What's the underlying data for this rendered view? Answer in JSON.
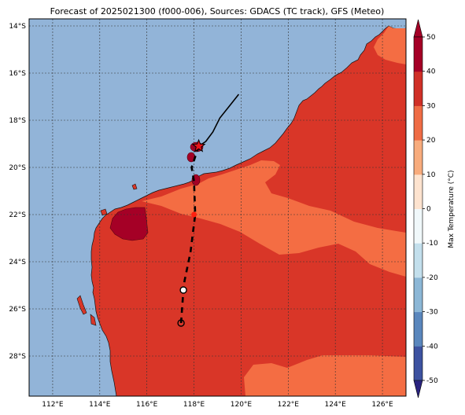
{
  "title": "Forecast of 2025021300 (f000-006), Sources: GDACS (TC track), GFS (Meteo)",
  "map": {
    "lon_range": [
      111,
      127
    ],
    "lat_range": [
      -29.7,
      -13.7
    ],
    "lon_ticks": [
      {
        "value": 112,
        "label": "112°E"
      },
      {
        "value": 114,
        "label": "114°E"
      },
      {
        "value": 116,
        "label": "116°E"
      },
      {
        "value": 118,
        "label": "118°E"
      },
      {
        "value": 120,
        "label": "120°E"
      },
      {
        "value": 122,
        "label": "122°E"
      },
      {
        "value": 124,
        "label": "124°E"
      },
      {
        "value": 126,
        "label": "126°E"
      }
    ],
    "lat_ticks": [
      {
        "value": -14,
        "label": "14°S"
      },
      {
        "value": -16,
        "label": "16°S"
      },
      {
        "value": -18,
        "label": "18°S"
      },
      {
        "value": -20,
        "label": "20°S"
      },
      {
        "value": -22,
        "label": "22°S"
      },
      {
        "value": -24,
        "label": "24°S"
      },
      {
        "value": -26,
        "label": "26°S"
      },
      {
        "value": -28,
        "label": "28°S"
      }
    ],
    "grid": true,
    "ocean_color": "#92b4d8",
    "track_past": [
      [
        119.9,
        -16.9
      ],
      [
        119.5,
        -17.4
      ],
      [
        119.1,
        -17.9
      ],
      [
        118.8,
        -18.5
      ],
      [
        118.5,
        -18.9
      ],
      [
        118.2,
        -19.1
      ]
    ],
    "track_forecast": [
      [
        118.2,
        -19.1
      ],
      [
        117.9,
        -20.0
      ],
      [
        118.0,
        -20.6
      ],
      [
        118.05,
        -22.0
      ],
      [
        117.85,
        -23.6
      ],
      [
        117.6,
        -24.8
      ],
      [
        117.55,
        -25.2
      ],
      [
        117.45,
        -26.6
      ]
    ],
    "current_position": [
      118.2,
      -19.1
    ],
    "forecast_points": [
      {
        "lon": 117.55,
        "lat": -25.2,
        "fill": "#ffffff"
      },
      {
        "lon": 117.45,
        "lat": -26.6,
        "fill": "none"
      },
      {
        "lon": 118.0,
        "lat": -22.0,
        "fill": "#ff2010"
      }
    ]
  },
  "colorbar": {
    "label": "Max Temperature (°C)",
    "ticks": [
      50,
      40,
      30,
      20,
      10,
      0,
      -10,
      -20,
      -30,
      -40,
      -50
    ],
    "colors": [
      "#2a2380",
      "#3d52a0",
      "#5a87bd",
      "#8cb7d6",
      "#c3dfec",
      "#f0f8fa",
      "#fde3cf",
      "#f8ac7d",
      "#ef6c45",
      "#d03027",
      "#a50026"
    ]
  }
}
